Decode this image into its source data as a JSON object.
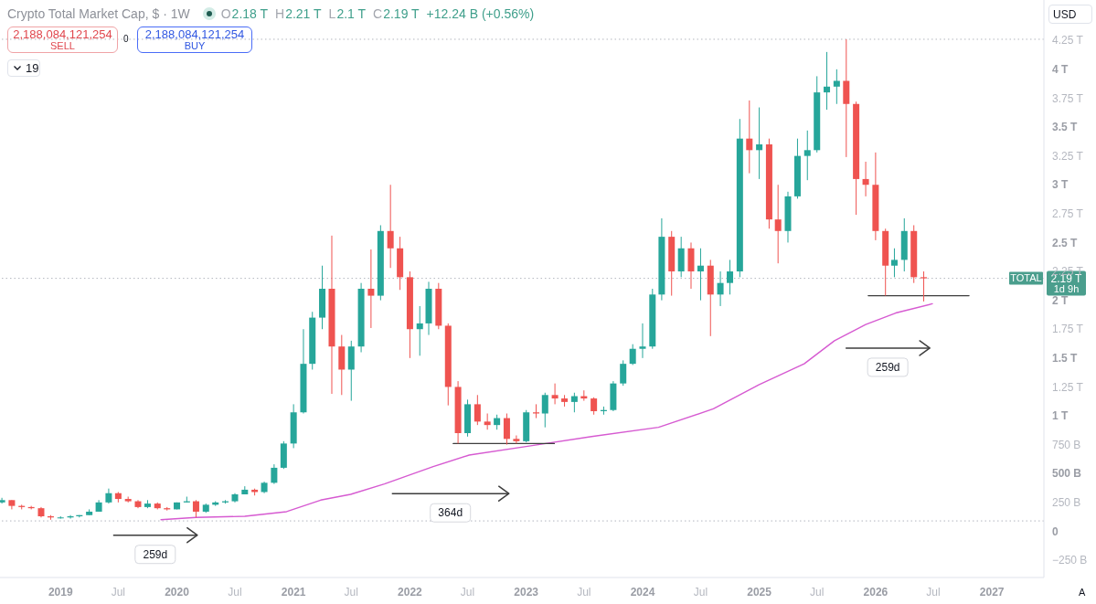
{
  "chart_data": {
    "type": "candlestick",
    "title": "Crypto Total Market Cap, $ · 1W",
    "x": [
      "2018-07",
      "2018-08",
      "2018-09",
      "2018-10",
      "2018-11",
      "2018-12",
      "2019-01",
      "2019-02",
      "2019-03",
      "2019-04",
      "2019-05",
      "2019-06",
      "2019-07",
      "2019-08",
      "2019-09",
      "2019-10",
      "2019-11",
      "2019-12",
      "2020-01",
      "2020-02",
      "2020-03",
      "2020-04",
      "2020-05",
      "2020-06",
      "2020-07",
      "2020-08",
      "2020-09",
      "2020-10",
      "2020-11",
      "2020-12",
      "2021-01",
      "2021-02",
      "2021-03",
      "2021-04",
      "2021-05",
      "2021-06",
      "2021-07",
      "2021-08",
      "2021-09",
      "2021-10",
      "2021-11",
      "2021-12",
      "2022-01",
      "2022-02",
      "2022-03",
      "2022-04",
      "2022-05",
      "2022-06",
      "2022-07",
      "2022-08",
      "2022-09",
      "2022-10",
      "2022-11",
      "2022-12",
      "2023-01",
      "2023-02",
      "2023-03",
      "2023-04",
      "2023-05",
      "2023-06",
      "2023-07",
      "2023-08",
      "2023-09",
      "2023-10",
      "2023-11",
      "2023-12",
      "2024-01",
      "2024-02",
      "2024-03",
      "2024-04",
      "2024-05",
      "2024-06",
      "2024-07",
      "2024-08",
      "2024-09",
      "2024-10",
      "2024-11",
      "2024-12",
      "2025-01",
      "2025-02",
      "2025-03",
      "2025-04",
      "2025-05",
      "2025-06",
      "2025-07",
      "2025-08",
      "2025-09",
      "2025-10",
      "2025-11",
      "2025-12",
      "2026-01",
      "2026-02",
      "2026-03",
      "2026-04",
      "2026-05",
      "2026-06"
    ],
    "ohlc": [
      [
        250000000000.0,
        290000000000.0,
        240000000000.0,
        270000000000.0
      ],
      [
        270000000000.0,
        270000000000.0,
        190000000000.0,
        220000000000.0
      ],
      [
        220000000000.0,
        230000000000.0,
        190000000000.0,
        210000000000.0
      ],
      [
        210000000000.0,
        220000000000.0,
        190000000000.0,
        200000000000.0
      ],
      [
        200000000000.0,
        210000000000.0,
        120000000000.0,
        130000000000.0
      ],
      [
        130000000000.0,
        140000000000.0,
        100000000000.0,
        120000000000.0
      ],
      [
        120000000000.0,
        130000000000.0,
        110000000000.0,
        120000000000.0
      ],
      [
        120000000000.0,
        140000000000.0,
        110000000000.0,
        130000000000.0
      ],
      [
        130000000000.0,
        140000000000.0,
        120000000000.0,
        140000000000.0
      ],
      [
        140000000000.0,
        190000000000.0,
        140000000000.0,
        170000000000.0
      ],
      [
        170000000000.0,
        270000000000.0,
        170000000000.0,
        250000000000.0
      ],
      [
        250000000000.0,
        370000000000.0,
        240000000000.0,
        330000000000.0
      ],
      [
        330000000000.0,
        340000000000.0,
        250000000000.0,
        280000000000.0
      ],
      [
        280000000000.0,
        300000000000.0,
        250000000000.0,
        260000000000.0
      ],
      [
        260000000000.0,
        270000000000.0,
        200000000000.0,
        210000000000.0
      ],
      [
        210000000000.0,
        270000000000.0,
        200000000000.0,
        240000000000.0
      ],
      [
        240000000000.0,
        250000000000.0,
        190000000000.0,
        200000000000.0
      ],
      [
        200000000000.0,
        210000000000.0,
        180000000000.0,
        190000000000.0
      ],
      [
        190000000000.0,
        250000000000.0,
        190000000000.0,
        250000000000.0
      ],
      [
        250000000000.0,
        300000000000.0,
        250000000000.0,
        260000000000.0
      ],
      [
        260000000000.0,
        270000000000.0,
        120000000000.0,
        170000000000.0
      ],
      [
        170000000000.0,
        240000000000.0,
        160000000000.0,
        230000000000.0
      ],
      [
        230000000000.0,
        260000000000.0,
        220000000000.0,
        250000000000.0
      ],
      [
        250000000000.0,
        270000000000.0,
        240000000000.0,
        260000000000.0
      ],
      [
        260000000000.0,
        330000000000.0,
        250000000000.0,
        320000000000.0
      ],
      [
        320000000000.0,
        390000000000.0,
        320000000000.0,
        360000000000.0
      ],
      [
        360000000000.0,
        370000000000.0,
        310000000000.0,
        340000000000.0
      ],
      [
        340000000000.0,
        430000000000.0,
        330000000000.0,
        420000000000.0
      ],
      [
        420000000000.0,
        580000000000.0,
        410000000000.0,
        550000000000.0
      ],
      [
        550000000000.0,
        780000000000.0,
        540000000000.0,
        760000000000.0
      ],
      [
        760000000000.0,
        1100000000000.0,
        720000000000.0,
        1030000000000.0
      ],
      [
        1030000000000.0,
        1750000000000.0,
        1020000000000.0,
        1450000000000.0
      ],
      [
        1450000000000.0,
        1900000000000.0,
        1400000000000.0,
        1850000000000.0
      ],
      [
        1850000000000.0,
        2300000000000.0,
        1750000000000.0,
        2100000000000.0
      ],
      [
        2100000000000.0,
        2560000000000.0,
        1190000000000.0,
        1600000000000.0
      ],
      [
        1600000000000.0,
        1700000000000.0,
        1180000000000.0,
        1400000000000.0
      ],
      [
        1400000000000.0,
        1650000000000.0,
        1130000000000.0,
        1600000000000.0
      ],
      [
        1600000000000.0,
        2150000000000.0,
        1550000000000.0,
        2100000000000.0
      ],
      [
        2100000000000.0,
        2440000000000.0,
        1760000000000.0,
        2040000000000.0
      ],
      [
        2040000000000.0,
        2650000000000.0,
        2000000000000.0,
        2600000000000.0
      ],
      [
        2600000000000.0,
        3000000000000.0,
        2280000000000.0,
        2450000000000.0
      ],
      [
        2450000000000.0,
        2550000000000.0,
        2090000000000.0,
        2200000000000.0
      ],
      [
        2200000000000.0,
        2250000000000.0,
        1500000000000.0,
        1750000000000.0
      ],
      [
        1750000000000.0,
        1950000000000.0,
        1520000000000.0,
        1800000000000.0
      ],
      [
        1800000000000.0,
        2160000000000.0,
        1700000000000.0,
        2100000000000.0
      ],
      [
        2100000000000.0,
        2150000000000.0,
        1750000000000.0,
        1780000000000.0
      ],
      [
        1780000000000.0,
        1800000000000.0,
        1090000000000.0,
        1250000000000.0
      ],
      [
        1250000000000.0,
        1300000000000.0,
        760000000000.0,
        850000000000.0
      ],
      [
        850000000000.0,
        1140000000000.0,
        820000000000.0,
        1100000000000.0
      ],
      [
        1100000000000.0,
        1180000000000.0,
        920000000000.0,
        950000000000.0
      ],
      [
        950000000000.0,
        1020000000000.0,
        880000000000.0,
        920000000000.0
      ],
      [
        920000000000.0,
        1010000000000.0,
        880000000000.0,
        980000000000.0
      ],
      [
        980000000000.0,
        1020000000000.0,
        750000000000.0,
        800000000000.0
      ],
      [
        800000000000.0,
        830000000000.0,
        760000000000.0,
        780000000000.0
      ],
      [
        780000000000.0,
        1050000000000.0,
        770000000000.0,
        1030000000000.0
      ],
      [
        1030000000000.0,
        1100000000000.0,
        980000000000.0,
        1020000000000.0
      ],
      [
        1020000000000.0,
        1200000000000.0,
        900000000000.0,
        1180000000000.0
      ],
      [
        1180000000000.0,
        1280000000000.0,
        1100000000000.0,
        1150000000000.0
      ],
      [
        1150000000000.0,
        1180000000000.0,
        1080000000000.0,
        1120000000000.0
      ],
      [
        1120000000000.0,
        1200000000000.0,
        1030000000000.0,
        1170000000000.0
      ],
      [
        1170000000000.0,
        1220000000000.0,
        1130000000000.0,
        1150000000000.0
      ],
      [
        1150000000000.0,
        1160000000000.0,
        1010000000000.0,
        1040000000000.0
      ],
      [
        1040000000000.0,
        1080000000000.0,
        1010000000000.0,
        1050000000000.0
      ],
      [
        1050000000000.0,
        1300000000000.0,
        1040000000000.0,
        1280000000000.0
      ],
      [
        1280000000000.0,
        1480000000000.0,
        1260000000000.0,
        1450000000000.0
      ],
      [
        1450000000000.0,
        1620000000000.0,
        1440000000000.0,
        1580000000000.0
      ],
      [
        1580000000000.0,
        1800000000000.0,
        1500000000000.0,
        1600000000000.0
      ],
      [
        1600000000000.0,
        2100000000000.0,
        1580000000000.0,
        2050000000000.0
      ],
      [
        2050000000000.0,
        2710000000000.0,
        2000000000000.0,
        2550000000000.0
      ],
      [
        2550000000000.0,
        2600000000000.0,
        2040000000000.0,
        2250000000000.0
      ],
      [
        2250000000000.0,
        2550000000000.0,
        2200000000000.0,
        2450000000000.0
      ],
      [
        2450000000000.0,
        2500000000000.0,
        2100000000000.0,
        2250000000000.0
      ],
      [
        2250000000000.0,
        2450000000000.0,
        2000000000000.0,
        2300000000000.0
      ],
      [
        2300000000000.0,
        2350000000000.0,
        1690000000000.0,
        2050000000000.0
      ],
      [
        2050000000000.0,
        2250000000000.0,
        1950000000000.0,
        2150000000000.0
      ],
      [
        2150000000000.0,
        2350000000000.0,
        2050000000000.0,
        2250000000000.0
      ],
      [
        2250000000000.0,
        3570000000000.0,
        2200000000000.0,
        3400000000000.0
      ],
      [
        3400000000000.0,
        3730000000000.0,
        3100000000000.0,
        3300000000000.0
      ],
      [
        3300000000000.0,
        3670000000000.0,
        3050000000000.0,
        3350000000000.0
      ],
      [
        3350000000000.0,
        3400000000000.0,
        2620000000000.0,
        2700000000000.0
      ],
      [
        2700000000000.0,
        3000000000000.0,
        2320000000000.0,
        2600000000000.0
      ],
      [
        2600000000000.0,
        2940000000000.0,
        2500000000000.0,
        2900000000000.0
      ],
      [
        2900000000000.0,
        3400000000000.0,
        2880000000000.0,
        3250000000000.0
      ],
      [
        3250000000000.0,
        3470000000000.0,
        3040000000000.0,
        3300000000000.0
      ],
      [
        3300000000000.0,
        3940000000000.0,
        3280000000000.0,
        3800000000000.0
      ],
      [
        3800000000000.0,
        4150000000000.0,
        3650000000000.0,
        3850000000000.0
      ],
      [
        3850000000000.0,
        4000000000000.0,
        3700000000000.0,
        3900000000000.0
      ],
      [
        3900000000000.0,
        4260000000000.0,
        3240000000000.0,
        3700000000000.0
      ],
      [
        3700000000000.0,
        3720000000000.0,
        2740000000000.0,
        3050000000000.0
      ],
      [
        3050000000000.0,
        3200000000000.0,
        2900000000000.0,
        3000000000000.0
      ],
      [
        3000000000000.0,
        3280000000000.0,
        2520000000000.0,
        2600000000000.0
      ],
      [
        2600000000000.0,
        2620000000000.0,
        2040000000000.0,
        2300000000000.0
      ],
      [
        2300000000000.0,
        2450000000000.0,
        2200000000000.0,
        2350000000000.0
      ],
      [
        2350000000000.0,
        2710000000000.0,
        2250000000000.0,
        2600000000000.0
      ],
      [
        2600000000000.0,
        2650000000000.0,
        2150000000000.0,
        2200000000000.0
      ],
      [
        2200000000000.0,
        2250000000000.0,
        1990000000000.0,
        2190000000000.0
      ]
    ],
    "colors": [
      "#26a69a",
      "#ef5350",
      "#ef5350",
      "#ef5350",
      "#ef5350",
      "#ef5350",
      "#26a69a",
      "#26a69a",
      "#26a69a",
      "#26a69a",
      "#26a69a",
      "#26a69a",
      "#ef5350",
      "#ef5350",
      "#ef5350",
      "#26a69a",
      "#ef5350",
      "#ef5350",
      "#26a69a",
      "#26a69a",
      "#ef5350",
      "#26a69a",
      "#26a69a",
      "#26a69a",
      "#26a69a",
      "#26a69a",
      "#ef5350",
      "#26a69a",
      "#26a69a",
      "#26a69a",
      "#26a69a",
      "#26a69a",
      "#26a69a",
      "#26a69a",
      "#ef5350",
      "#ef5350",
      "#26a69a",
      "#26a69a",
      "#ef5350",
      "#26a69a",
      "#ef5350",
      "#ef5350",
      "#ef5350",
      "#26a69a",
      "#26a69a",
      "#ef5350",
      "#ef5350",
      "#ef5350",
      "#26a69a",
      "#ef5350",
      "#ef5350",
      "#26a69a",
      "#ef5350",
      "#ef5350",
      "#26a69a",
      "#ef5350",
      "#26a69a",
      "#ef5350",
      "#ef5350",
      "#26a69a",
      "#ef5350",
      "#ef5350",
      "#26a69a",
      "#26a69a",
      "#26a69a",
      "#26a69a",
      "#26a69a",
      "#26a69a",
      "#26a69a",
      "#ef5350",
      "#26a69a",
      "#ef5350",
      "#26a69a",
      "#ef5350",
      "#26a69a",
      "#26a69a",
      "#26a69a",
      "#ef5350",
      "#26a69a",
      "#ef5350",
      "#ef5350",
      "#26a69a",
      "#26a69a",
      "#26a69a",
      "#26a69a",
      "#26a69a",
      "#26a69a",
      "#ef5350",
      "#ef5350",
      "#ef5350",
      "#ef5350",
      "#ef5350",
      "#26a69a",
      "#26a69a",
      "#ef5350",
      "#ef5350"
    ],
    "series": [
      {
        "type": "line",
        "color": "#d65ad1",
        "x": [
          "2019-11-12",
          "2020-03-01",
          "2020-08-01",
          "2020-12-10",
          "2021-03-27",
          "2021-06-29",
          "2021-10-13",
          "2022-03-15",
          "2022-07-06",
          "2023-01-15",
          "2023-07-25",
          "2024-02-20",
          "2024-08-10",
          "2025-01-01",
          "2025-05-22",
          "2025-08-25",
          "2025-12-01",
          "2026-03-05",
          "2026-06-28"
        ],
        "values": [
          100000000000.0,
          120000000000.0,
          130000000000.0,
          170000000000.0,
          270000000000.0,
          320000000000.0,
          410000000000.0,
          560000000000.0,
          660000000000.0,
          740000000000.0,
          820000000000.0,
          900000000000.0,
          1060000000000.0,
          1270000000000.0,
          1450000000000.0,
          1650000000000.0,
          1790000000000.0,
          1890000000000.0,
          1970000000000.0
        ]
      },
      {
        "type": "line",
        "color": "#3d3d3d",
        "x": [
          "2022-05-17",
          "2023-03-30"
        ],
        "values": [
          760000000000.0,
          760000000000.0
        ]
      },
      {
        "type": "line",
        "color": "#3d3d3d",
        "x": [
          "2025-12-09",
          "2026-10-21"
        ],
        "values": [
          2040000000000.0,
          2040000000000.0
        ]
      }
    ],
    "marker": "none",
    "xlim": [
      "2018-06-25",
      "2027-06-13"
    ],
    "xticks": [
      {
        "value": "2019-01",
        "label": "2019"
      },
      {
        "value": "2019-07",
        "label": "Jul"
      },
      {
        "value": "2020-01",
        "label": "2020"
      },
      {
        "value": "2020-07",
        "label": "Jul"
      },
      {
        "value": "2021-01",
        "label": "2021"
      },
      {
        "value": "2021-07",
        "label": "Jul"
      },
      {
        "value": "2022-01",
        "label": "2022"
      },
      {
        "value": "2022-07",
        "label": "Jul"
      },
      {
        "value": "2023-01",
        "label": "2023"
      },
      {
        "value": "2023-07",
        "label": "Jul"
      },
      {
        "value": "2024-01",
        "label": "2024"
      },
      {
        "value": "2024-07",
        "label": "Jul"
      },
      {
        "value": "2025-01",
        "label": "2025"
      },
      {
        "value": "2025-07",
        "label": "Jul"
      },
      {
        "value": "2026-01",
        "label": "2026"
      },
      {
        "value": "2026-07",
        "label": "Jul"
      },
      {
        "value": "2027-01",
        "label": "2027"
      }
    ],
    "ylim": [
      -400000000000.0,
      4600000000000.0
    ],
    "yticks": [
      {
        "value": -250000000000.0,
        "label": "−250 B"
      },
      0,
      {
        "value": 250000000000.0,
        "label": "250 B"
      },
      {
        "value": 500000000000.0,
        "label": "500 B"
      },
      {
        "value": 750000000000.0,
        "label": "750 B"
      },
      {
        "value": 1000000000000.0,
        "label": "1 T"
      },
      {
        "value": 1250000000000.0,
        "label": "1.25 T"
      },
      {
        "value": 1500000000000.0,
        "label": "1.5 T"
      },
      {
        "value": 1750000000000.0,
        "label": "1.75 T"
      },
      {
        "value": 2000000000000.0,
        "label": "2 T"
      },
      {
        "value": 2250000000000.0,
        "label": "2.25 T"
      },
      {
        "value": 2500000000000.0,
        "label": "2.5 T"
      },
      {
        "value": 2750000000000.0,
        "label": "2.75 T"
      },
      {
        "value": 3000000000000.0,
        "label": "3 T"
      },
      {
        "value": 3250000000000.0,
        "label": "3.25 T"
      },
      {
        "value": 3500000000000.0,
        "label": "3.5 T"
      },
      {
        "value": 3750000000000.0,
        "label": "3.75 T"
      },
      {
        "value": 4000000000000.0,
        "label": "4 T"
      },
      {
        "value": 4250000000000.0,
        "label": "4.25 T"
      }
    ],
    "ref_lines": [
      {
        "axis": "y",
        "value": 4260000000000.0,
        "color": "#b2b5be",
        "line_style": "dotted"
      },
      {
        "axis": "y",
        "value": 2190000000000.0,
        "color": "#b2b5be",
        "line_style": "dotted",
        "label": "TOTAL"
      },
      {
        "axis": "y",
        "value": 90000000000.0,
        "color": "#b2b5be",
        "line_style": "dotted"
      }
    ],
    "annotations": [
      "2,188,084,121,254",
      "SELL",
      "0",
      "2,188,084,121,254",
      "BUY",
      "19",
      "O",
      "2.18 T",
      "H",
      "2.21 T",
      "L",
      "2.1 T",
      "C",
      "2.19 T",
      "+12.24 B (+0.56%)",
      "USD",
      "2.19 T",
      "1d 9h",
      "A",
      {
        "text": "259d",
        "x": "2019-10-25",
        "y": -200000000000.0
      },
      {
        "text": "364d",
        "x": "2022-05-08",
        "y": 160000000000.0
      },
      {
        "text": "259d",
        "x": "2026-02-08",
        "y": 1420000000000.0
      }
    ]
  }
}
